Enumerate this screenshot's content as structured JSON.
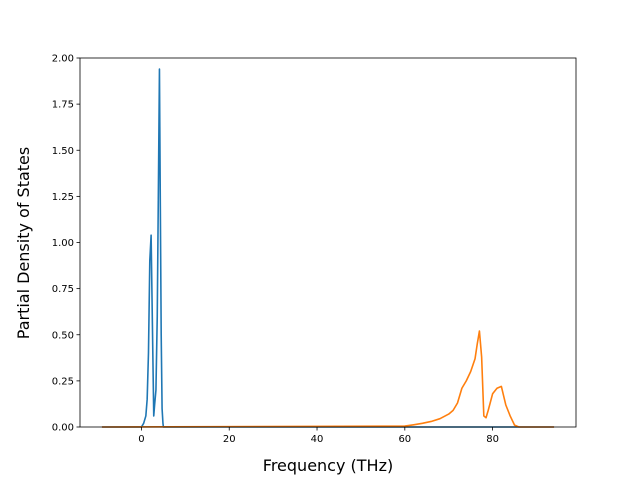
{
  "chart_data": {
    "type": "line",
    "title": "",
    "xlabel": "Frequency (THz)",
    "ylabel": "Partial Density of States",
    "xlim": [
      -14.0,
      99.0
    ],
    "ylim": [
      0.0,
      2.0
    ],
    "x_ticks": [
      0,
      20,
      40,
      60,
      80
    ],
    "y_ticks": [
      0.0,
      0.25,
      0.5,
      0.75,
      1.0,
      1.25,
      1.5,
      1.75,
      2.0
    ],
    "x_tick_labels": [
      "0",
      "20",
      "40",
      "60",
      "80"
    ],
    "y_tick_labels": [
      "0.00",
      "0.25",
      "0.50",
      "0.75",
      "1.00",
      "1.25",
      "1.50",
      "1.75",
      "2.00"
    ],
    "grid": false,
    "legend": "none",
    "series": [
      {
        "color": "#1f77b4",
        "x": [
          -9.0,
          0.0,
          0.5,
          1.0,
          1.3,
          1.6,
          1.9,
          2.2,
          2.5,
          2.8,
          3.0,
          3.3,
          3.6,
          3.9,
          4.1,
          4.3,
          4.5,
          4.7,
          4.9,
          5.0,
          60.0,
          94.0
        ],
        "y": [
          0.0,
          0.0,
          0.02,
          0.06,
          0.15,
          0.4,
          0.9,
          1.04,
          0.55,
          0.06,
          0.12,
          0.2,
          0.6,
          1.4,
          1.94,
          1.2,
          0.5,
          0.1,
          0.02,
          0.0,
          0.0,
          0.0
        ]
      },
      {
        "color": "#ff7f0e",
        "x": [
          -9.0,
          60.0,
          62.0,
          64.0,
          66.0,
          68.0,
          70.0,
          71.0,
          72.0,
          73.0,
          74.0,
          75.0,
          76.0,
          76.5,
          77.0,
          77.5,
          78.0,
          78.5,
          79.0,
          80.0,
          81.0,
          82.0,
          82.5,
          83.0,
          84.0,
          85.0,
          86.0,
          94.0
        ],
        "y": [
          0.0,
          0.005,
          0.012,
          0.02,
          0.03,
          0.045,
          0.07,
          0.09,
          0.13,
          0.21,
          0.25,
          0.3,
          0.37,
          0.45,
          0.52,
          0.38,
          0.06,
          0.05,
          0.09,
          0.18,
          0.21,
          0.22,
          0.17,
          0.12,
          0.06,
          0.01,
          0.0,
          0.0
        ]
      }
    ]
  }
}
